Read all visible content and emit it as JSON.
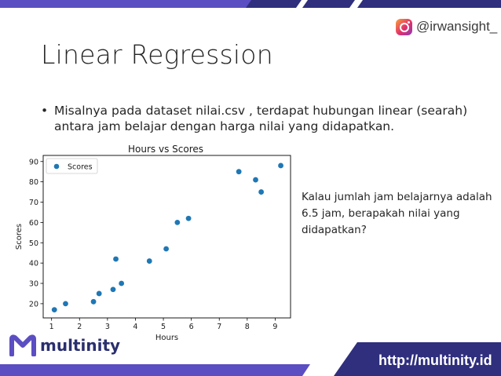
{
  "header": {
    "instagram_handle": "@irwansight_"
  },
  "slide": {
    "title": "Linear Regression",
    "bullet_line1": "Misalnya pada dataset nilai.csv , terdapat hubungan linear (searah)",
    "bullet_line2": "antara jam belajar dengan harga nilai yang didapatkan.",
    "question_line1": "Kalau jumlah jam belajarnya adalah",
    "question_line2": "6.5 jam, berapakah nilai yang",
    "question_line3": "didapatkan?"
  },
  "footer": {
    "brand": "multinity",
    "url": "http://multinity.id"
  },
  "colors": {
    "navy": "#2f2f7e",
    "purple": "#5b4ec2",
    "point": "#1f77b4"
  },
  "chart_data": {
    "type": "scatter",
    "title": "Hours vs Scores",
    "xlabel": "Hours",
    "ylabel": "Scores",
    "xlim": [
      0.7,
      9.55
    ],
    "ylim": [
      13,
      93
    ],
    "x_ticks": [
      1,
      2,
      3,
      4,
      5,
      6,
      7,
      8,
      9
    ],
    "y_ticks": [
      20,
      30,
      40,
      50,
      60,
      70,
      80,
      90
    ],
    "legend_position": "top-left",
    "grid": false,
    "series": [
      {
        "name": "Scores",
        "points": [
          [
            1.1,
            17
          ],
          [
            1.5,
            20
          ],
          [
            2.5,
            21
          ],
          [
            2.7,
            25
          ],
          [
            3.2,
            27
          ],
          [
            3.3,
            42
          ],
          [
            3.5,
            30
          ],
          [
            4.5,
            41
          ],
          [
            5.1,
            47
          ],
          [
            5.5,
            60
          ],
          [
            5.9,
            62
          ],
          [
            7.7,
            85
          ],
          [
            8.3,
            81
          ],
          [
            8.5,
            75
          ],
          [
            9.2,
            88
          ]
        ]
      }
    ]
  }
}
